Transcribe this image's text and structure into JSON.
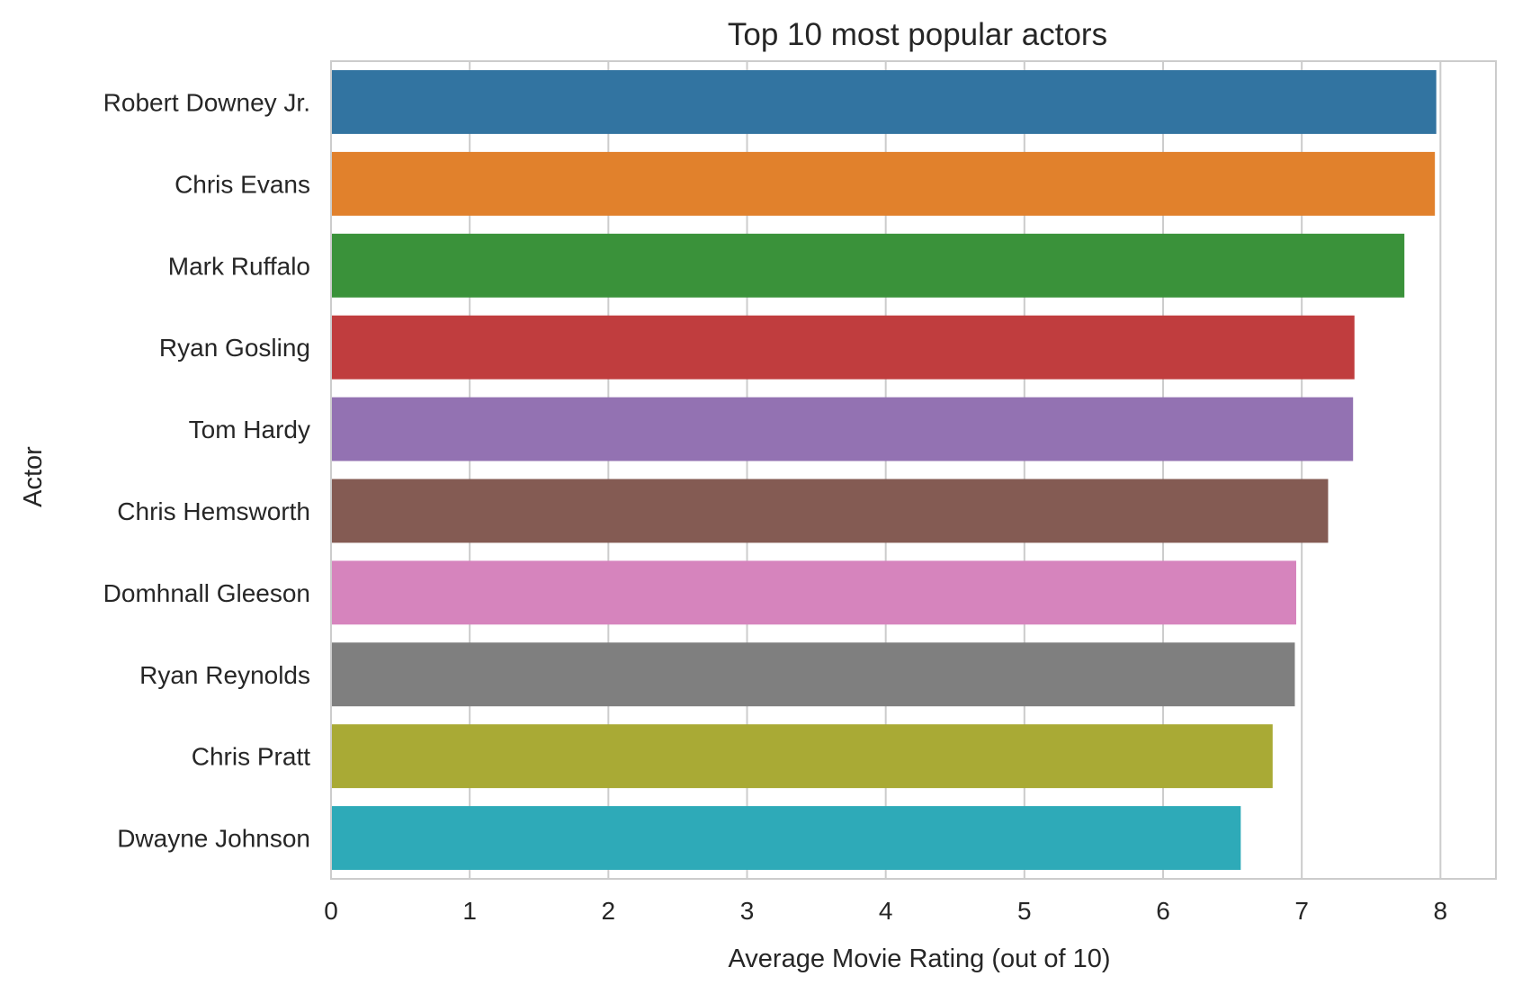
{
  "chart_data": {
    "type": "bar",
    "orientation": "horizontal",
    "title": "Top 10 most popular actors",
    "xlabel": "Average Movie Rating (out of 10)",
    "ylabel": "Actor",
    "xlim": [
      0,
      8.4
    ],
    "xticks": [
      0,
      1,
      2,
      3,
      4,
      5,
      6,
      7,
      8
    ],
    "grid": true,
    "legend": "none",
    "categories": [
      "Robert Downey Jr.",
      "Chris Evans",
      "Mark Ruffalo",
      "Ryan Gosling",
      "Tom Hardy",
      "Chris Hemsworth",
      "Domhnall Gleeson",
      "Ryan Reynolds",
      "Chris Pratt",
      "Dwayne Johnson"
    ],
    "values": [
      7.97,
      7.96,
      7.74,
      7.38,
      7.37,
      7.19,
      6.96,
      6.95,
      6.79,
      6.56
    ],
    "colors": [
      "#3274a1",
      "#e1812c",
      "#3a923a",
      "#c03d3e",
      "#9372b2",
      "#845b53",
      "#d684bd",
      "#7f7f7f",
      "#a9aa35",
      "#2eaab8"
    ],
    "grid_color": "#cccccc",
    "spine_color": "#cccccc"
  }
}
